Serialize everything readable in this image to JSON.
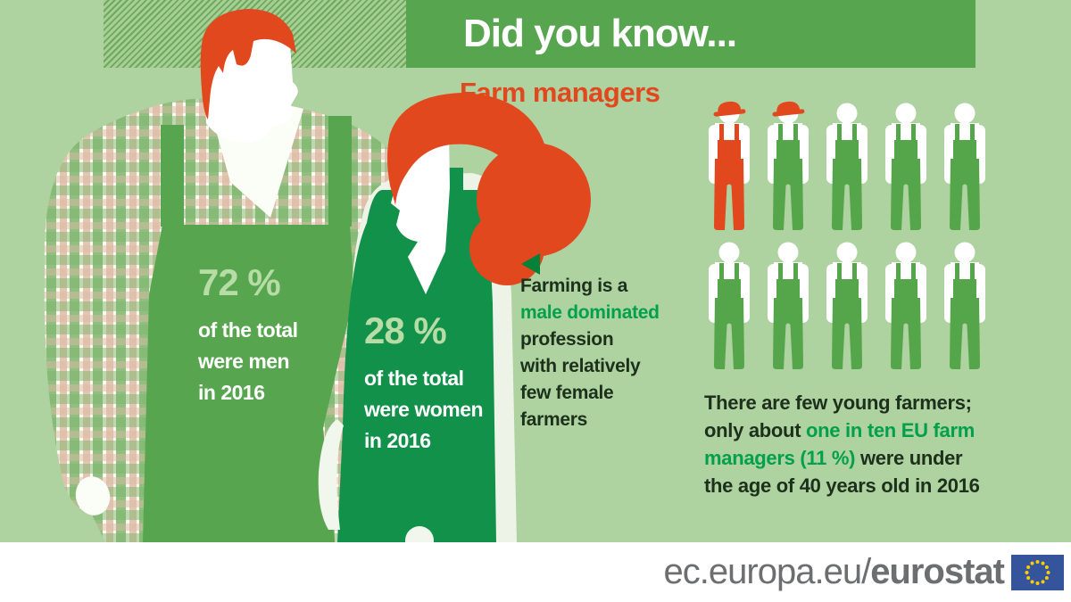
{
  "title": "Did you know...",
  "subtitle": "Farm managers",
  "palette": {
    "background": "#AED2A0",
    "banner_green": "#57A64F",
    "dark_text": "#1C301B",
    "highlight_green": "#00A04C",
    "accent_red": "#E2481E",
    "male_overalls_green": "#57A64F",
    "female_overalls_green": "#12914B",
    "figure_green": "#55A64B",
    "stat_value_green": "#B7DCA6",
    "footer_text_gray": "#6D6E70",
    "eu_flag_blue": "#34549C",
    "eu_flag_stars": "#FFCC00"
  },
  "male_stat": {
    "value": "72 %",
    "lines": [
      "of the total",
      "were men",
      "in 2016"
    ]
  },
  "female_stat": {
    "value": "28 %",
    "lines": [
      "of the total",
      "were women",
      "in 2016"
    ]
  },
  "callout": {
    "lines": [
      {
        "text": "Farming is a",
        "highlight": false
      },
      {
        "text": "male dominated",
        "highlight": true
      },
      {
        "text": "profession",
        "highlight": false
      },
      {
        "text": "with relatively",
        "highlight": false
      },
      {
        "text": "few female",
        "highlight": false
      },
      {
        "text": "farmers",
        "highlight": false
      }
    ]
  },
  "young_farmers": {
    "lines": [
      [
        {
          "text": "There are few young farmers;",
          "highlight": false
        }
      ],
      [
        {
          "text": "only about ",
          "highlight": false
        },
        {
          "text": "one in ten EU farm",
          "highlight": true
        }
      ],
      [
        {
          "text": "managers (11 %)",
          "highlight": true
        },
        {
          "text": " were under",
          "highlight": false
        }
      ],
      [
        {
          "text": "the age of 40 years old in 2016",
          "highlight": false
        }
      ]
    ]
  },
  "pictogram": {
    "rows": [
      [
        "red-hat",
        "green-hat",
        "green",
        "green",
        "green"
      ],
      [
        "green",
        "green",
        "green",
        "green",
        "green"
      ]
    ]
  },
  "chart_data": {
    "type": "pictogram",
    "title": "Farm managers",
    "year": 2016,
    "series": [
      {
        "name": "Male farm managers share of total",
        "value": 72,
        "unit": "%"
      },
      {
        "name": "Female farm managers share of total",
        "value": 28,
        "unit": "%"
      },
      {
        "name": "EU farm managers under age 40",
        "value": 11,
        "unit": "%"
      }
    ],
    "pictogram_units": {
      "total_figures": 10,
      "highlighted_figures": 1.1
    }
  },
  "footer": {
    "url_regular": "ec.europa.eu/",
    "url_bold": "eurostat"
  }
}
